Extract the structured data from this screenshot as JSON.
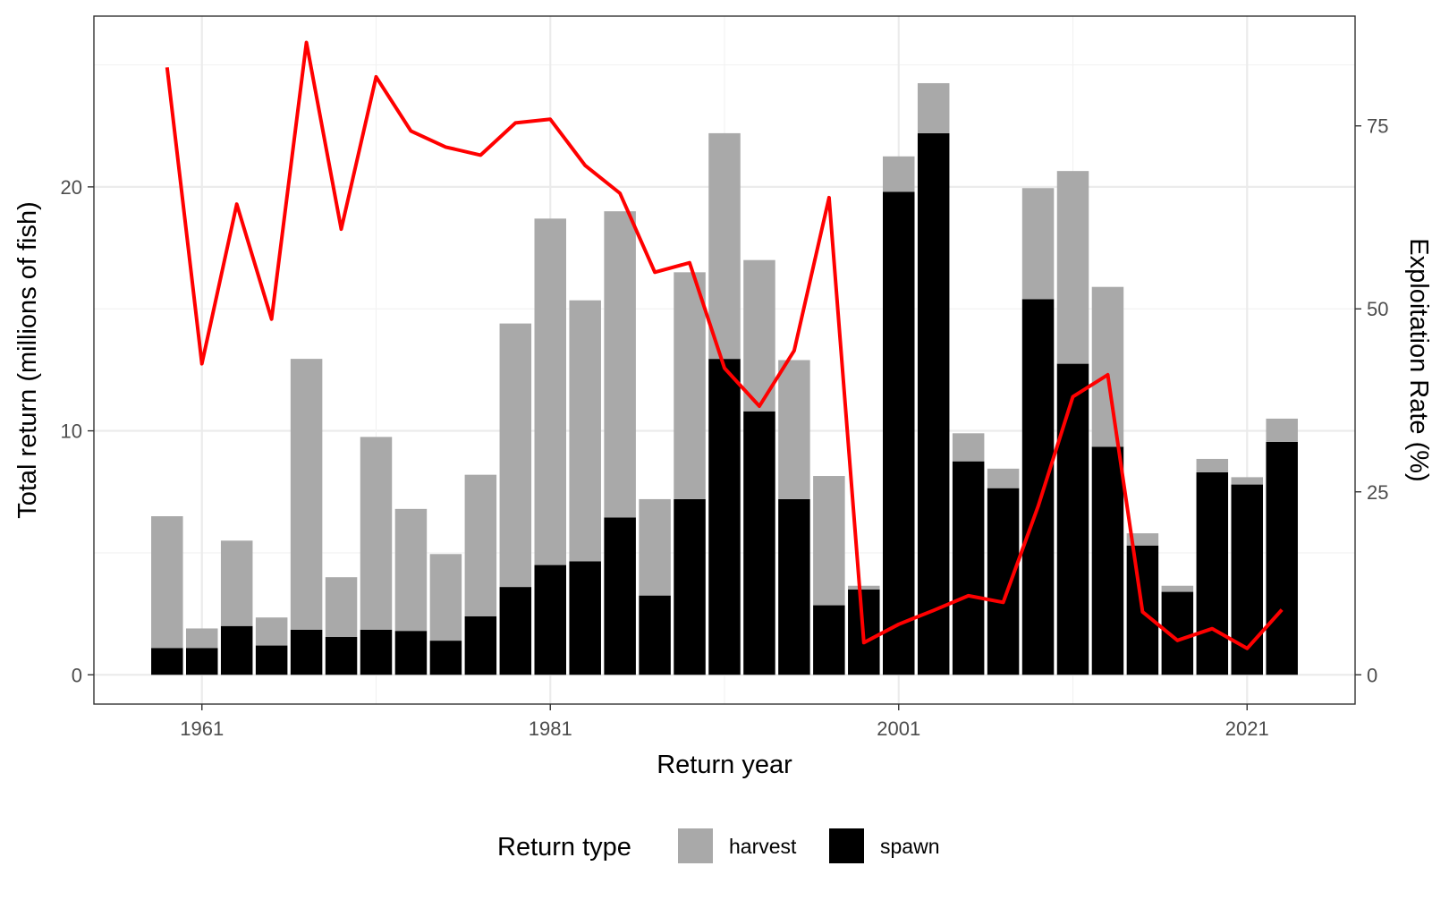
{
  "chart_data": {
    "type": "bar",
    "stacked": true,
    "x_axis": {
      "label": "Return year",
      "ticks": [
        1961,
        1981,
        2001,
        2021
      ],
      "range": [
        1954.8,
        2027.2
      ]
    },
    "y_axis_left": {
      "label": "Total return (millions of fish)",
      "ticks": [
        0,
        10,
        20
      ],
      "range": [
        -1.2,
        27.0
      ]
    },
    "y_axis_right": {
      "label": "Exploitation Rate (%)",
      "ticks": [
        0,
        25,
        50,
        75
      ],
      "range": [
        -4.0,
        90.0
      ]
    },
    "grid": true,
    "legend": {
      "title": "Return type",
      "position": "bottom",
      "items": [
        {
          "label": "harvest",
          "color": "#a9a9a9"
        },
        {
          "label": "spawn",
          "color": "#000000"
        }
      ]
    },
    "years": [
      1959,
      1961,
      1963,
      1965,
      1967,
      1969,
      1971,
      1973,
      1975,
      1977,
      1979,
      1981,
      1983,
      1985,
      1987,
      1989,
      1991,
      1993,
      1995,
      1997,
      1999,
      2001,
      2003,
      2005,
      2007,
      2009,
      2011,
      2013,
      2015,
      2017,
      2019,
      2021,
      2023
    ],
    "series": [
      {
        "name": "spawn",
        "color": "#000000",
        "values": [
          1.1,
          1.1,
          2.0,
          1.2,
          1.85,
          1.55,
          1.85,
          1.8,
          1.4,
          2.4,
          3.6,
          4.5,
          4.65,
          6.45,
          3.25,
          7.2,
          12.95,
          10.8,
          7.2,
          2.85,
          3.5,
          19.8,
          22.2,
          8.75,
          7.65,
          15.4,
          12.75,
          9.35,
          5.3,
          3.4,
          8.3,
          7.8,
          9.55
        ]
      },
      {
        "name": "harvest",
        "color": "#a9a9a9",
        "values": [
          5.4,
          0.8,
          3.5,
          1.15,
          11.1,
          2.45,
          7.9,
          5.0,
          3.55,
          5.8,
          10.8,
          14.2,
          10.7,
          12.55,
          3.95,
          9.3,
          9.25,
          6.2,
          5.7,
          5.3,
          0.15,
          1.45,
          2.05,
          1.15,
          0.8,
          4.55,
          7.9,
          6.55,
          0.5,
          0.25,
          0.55,
          0.3,
          0.95
        ]
      },
      {
        "name": "Exploitation Rate",
        "type": "line",
        "axis": "right",
        "color": "#ff0000",
        "x": [
          1959,
          1961,
          1963,
          1965,
          1967,
          1969,
          1971,
          1973,
          1975,
          1977,
          1979,
          1981,
          1983,
          1985,
          1987,
          1989,
          1991,
          1993,
          1995,
          1997,
          1999,
          2001,
          2003,
          2005,
          2007,
          2009,
          2011,
          2013,
          2015,
          2017,
          2019,
          2021,
          2023
        ],
        "values": [
          83,
          42.5,
          64.3,
          48.6,
          86.4,
          60.9,
          81.7,
          74.3,
          72.1,
          71.0,
          75.4,
          75.9,
          69.6,
          65.8,
          55.0,
          56.3,
          41.9,
          36.7,
          44.3,
          65.2,
          4.4,
          6.9,
          8.8,
          10.8,
          9.9,
          23.0,
          38.0,
          41.0,
          8.6,
          4.7,
          6.3,
          3.6,
          8.9
        ]
      }
    ]
  }
}
